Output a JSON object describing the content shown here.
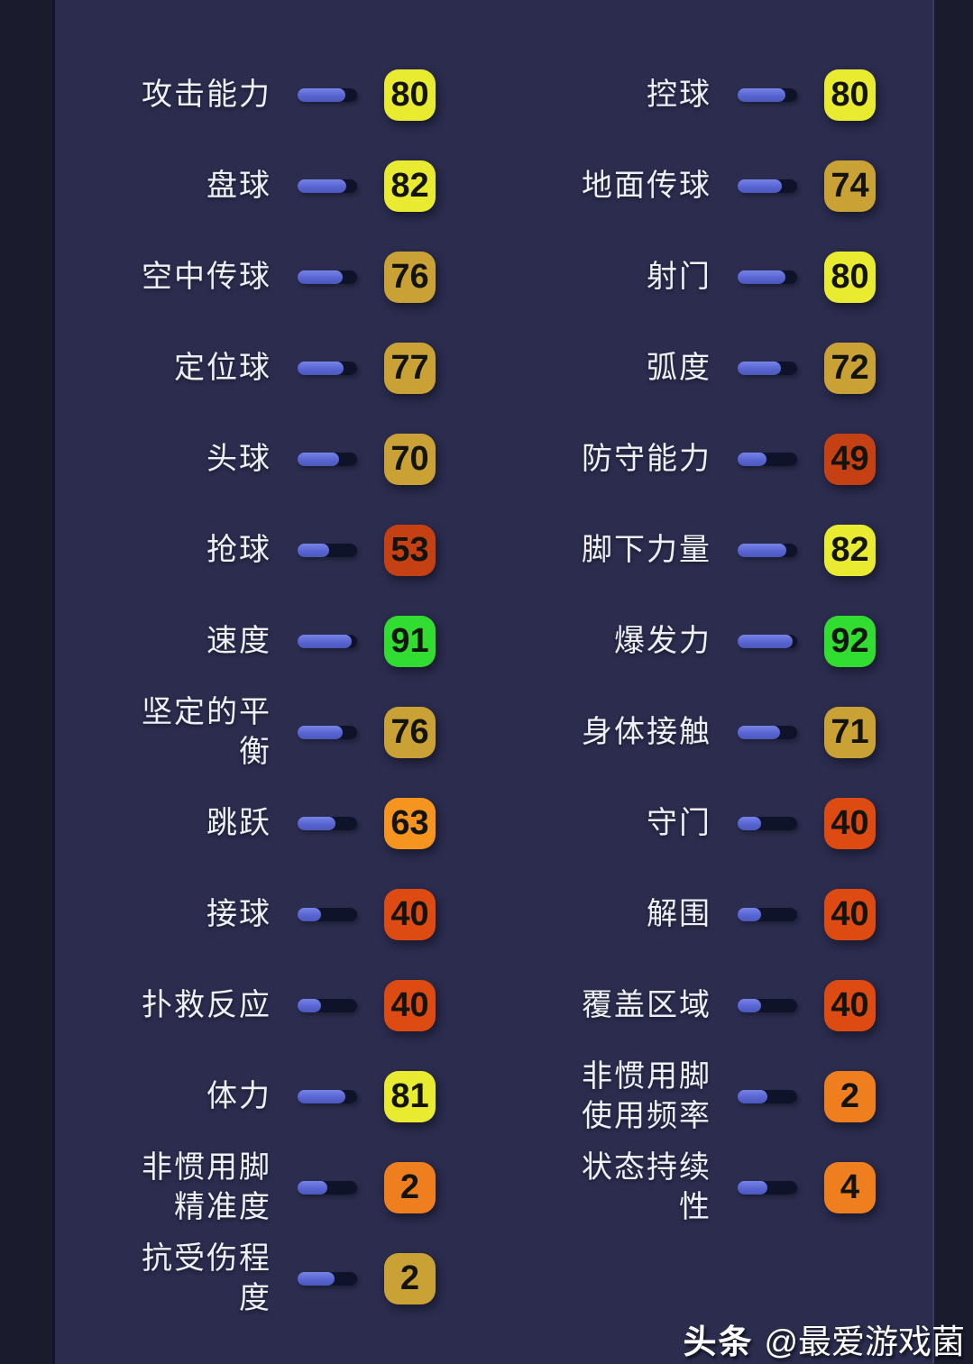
{
  "colors": {
    "page_bg": "#1a1c2e",
    "panel_bg": "#2b2c4e",
    "bar_track": "#0f1329",
    "bar_fill": "#5865d2",
    "badge": {
      "yellow": "#e9eb31",
      "gold": "#c9a135",
      "green": "#32dd32",
      "orange": "#f5941e",
      "dark_red": "#c54114",
      "red_orange": "#dd4a12",
      "orange_special": "#ef7e1e"
    }
  },
  "stats": {
    "left": [
      {
        "label": "攻击能力",
        "value": "80",
        "color": "yellow",
        "fill_pct": 80
      },
      {
        "label": "盘球",
        "value": "82",
        "color": "yellow",
        "fill_pct": 82
      },
      {
        "label": "空中传球",
        "value": "76",
        "color": "gold",
        "fill_pct": 76
      },
      {
        "label": "定位球",
        "value": "77",
        "color": "gold",
        "fill_pct": 77
      },
      {
        "label": "头球",
        "value": "70",
        "color": "gold",
        "fill_pct": 70
      },
      {
        "label": "抢球",
        "value": "53",
        "color": "dark_red",
        "fill_pct": 53
      },
      {
        "label": "速度",
        "value": "91",
        "color": "green",
        "fill_pct": 91
      },
      {
        "label": "坚定的平衡",
        "value": "76",
        "color": "gold",
        "fill_pct": 76
      },
      {
        "label": "跳跃",
        "value": "63",
        "color": "orange",
        "fill_pct": 63
      },
      {
        "label": "接球",
        "value": "40",
        "color": "red_orange",
        "fill_pct": 40
      },
      {
        "label": "扑救反应",
        "value": "40",
        "color": "red_orange",
        "fill_pct": 40
      },
      {
        "label": "体力",
        "value": "81",
        "color": "yellow",
        "fill_pct": 81
      },
      {
        "label": "非惯用脚精准度",
        "value": "2",
        "color": "orange_special",
        "fill_pct": 50
      },
      {
        "label": "抗受伤程度",
        "value": "2",
        "color": "gold",
        "fill_pct": 62
      }
    ],
    "right": [
      {
        "label": "控球",
        "value": "80",
        "color": "yellow",
        "fill_pct": 80
      },
      {
        "label": "地面传球",
        "value": "74",
        "color": "gold",
        "fill_pct": 74
      },
      {
        "label": "射门",
        "value": "80",
        "color": "yellow",
        "fill_pct": 80
      },
      {
        "label": "弧度",
        "value": "72",
        "color": "gold",
        "fill_pct": 72
      },
      {
        "label": "防守能力",
        "value": "49",
        "color": "dark_red",
        "fill_pct": 49
      },
      {
        "label": "脚下力量",
        "value": "82",
        "color": "yellow",
        "fill_pct": 82
      },
      {
        "label": "爆发力",
        "value": "92",
        "color": "green",
        "fill_pct": 92
      },
      {
        "label": "身体接触",
        "value": "71",
        "color": "gold",
        "fill_pct": 71
      },
      {
        "label": "守门",
        "value": "40",
        "color": "red_orange",
        "fill_pct": 40
      },
      {
        "label": "解围",
        "value": "40",
        "color": "red_orange",
        "fill_pct": 40
      },
      {
        "label": "覆盖区域",
        "value": "40",
        "color": "red_orange",
        "fill_pct": 40
      },
      {
        "label": "非惯用脚使用频率",
        "value": "2",
        "color": "orange_special",
        "fill_pct": 50
      },
      {
        "label": "状态持续性",
        "value": "4",
        "color": "orange_special",
        "fill_pct": 50
      }
    ]
  },
  "watermark": {
    "brand": "头条",
    "handle": "@最爱游戏菌"
  }
}
